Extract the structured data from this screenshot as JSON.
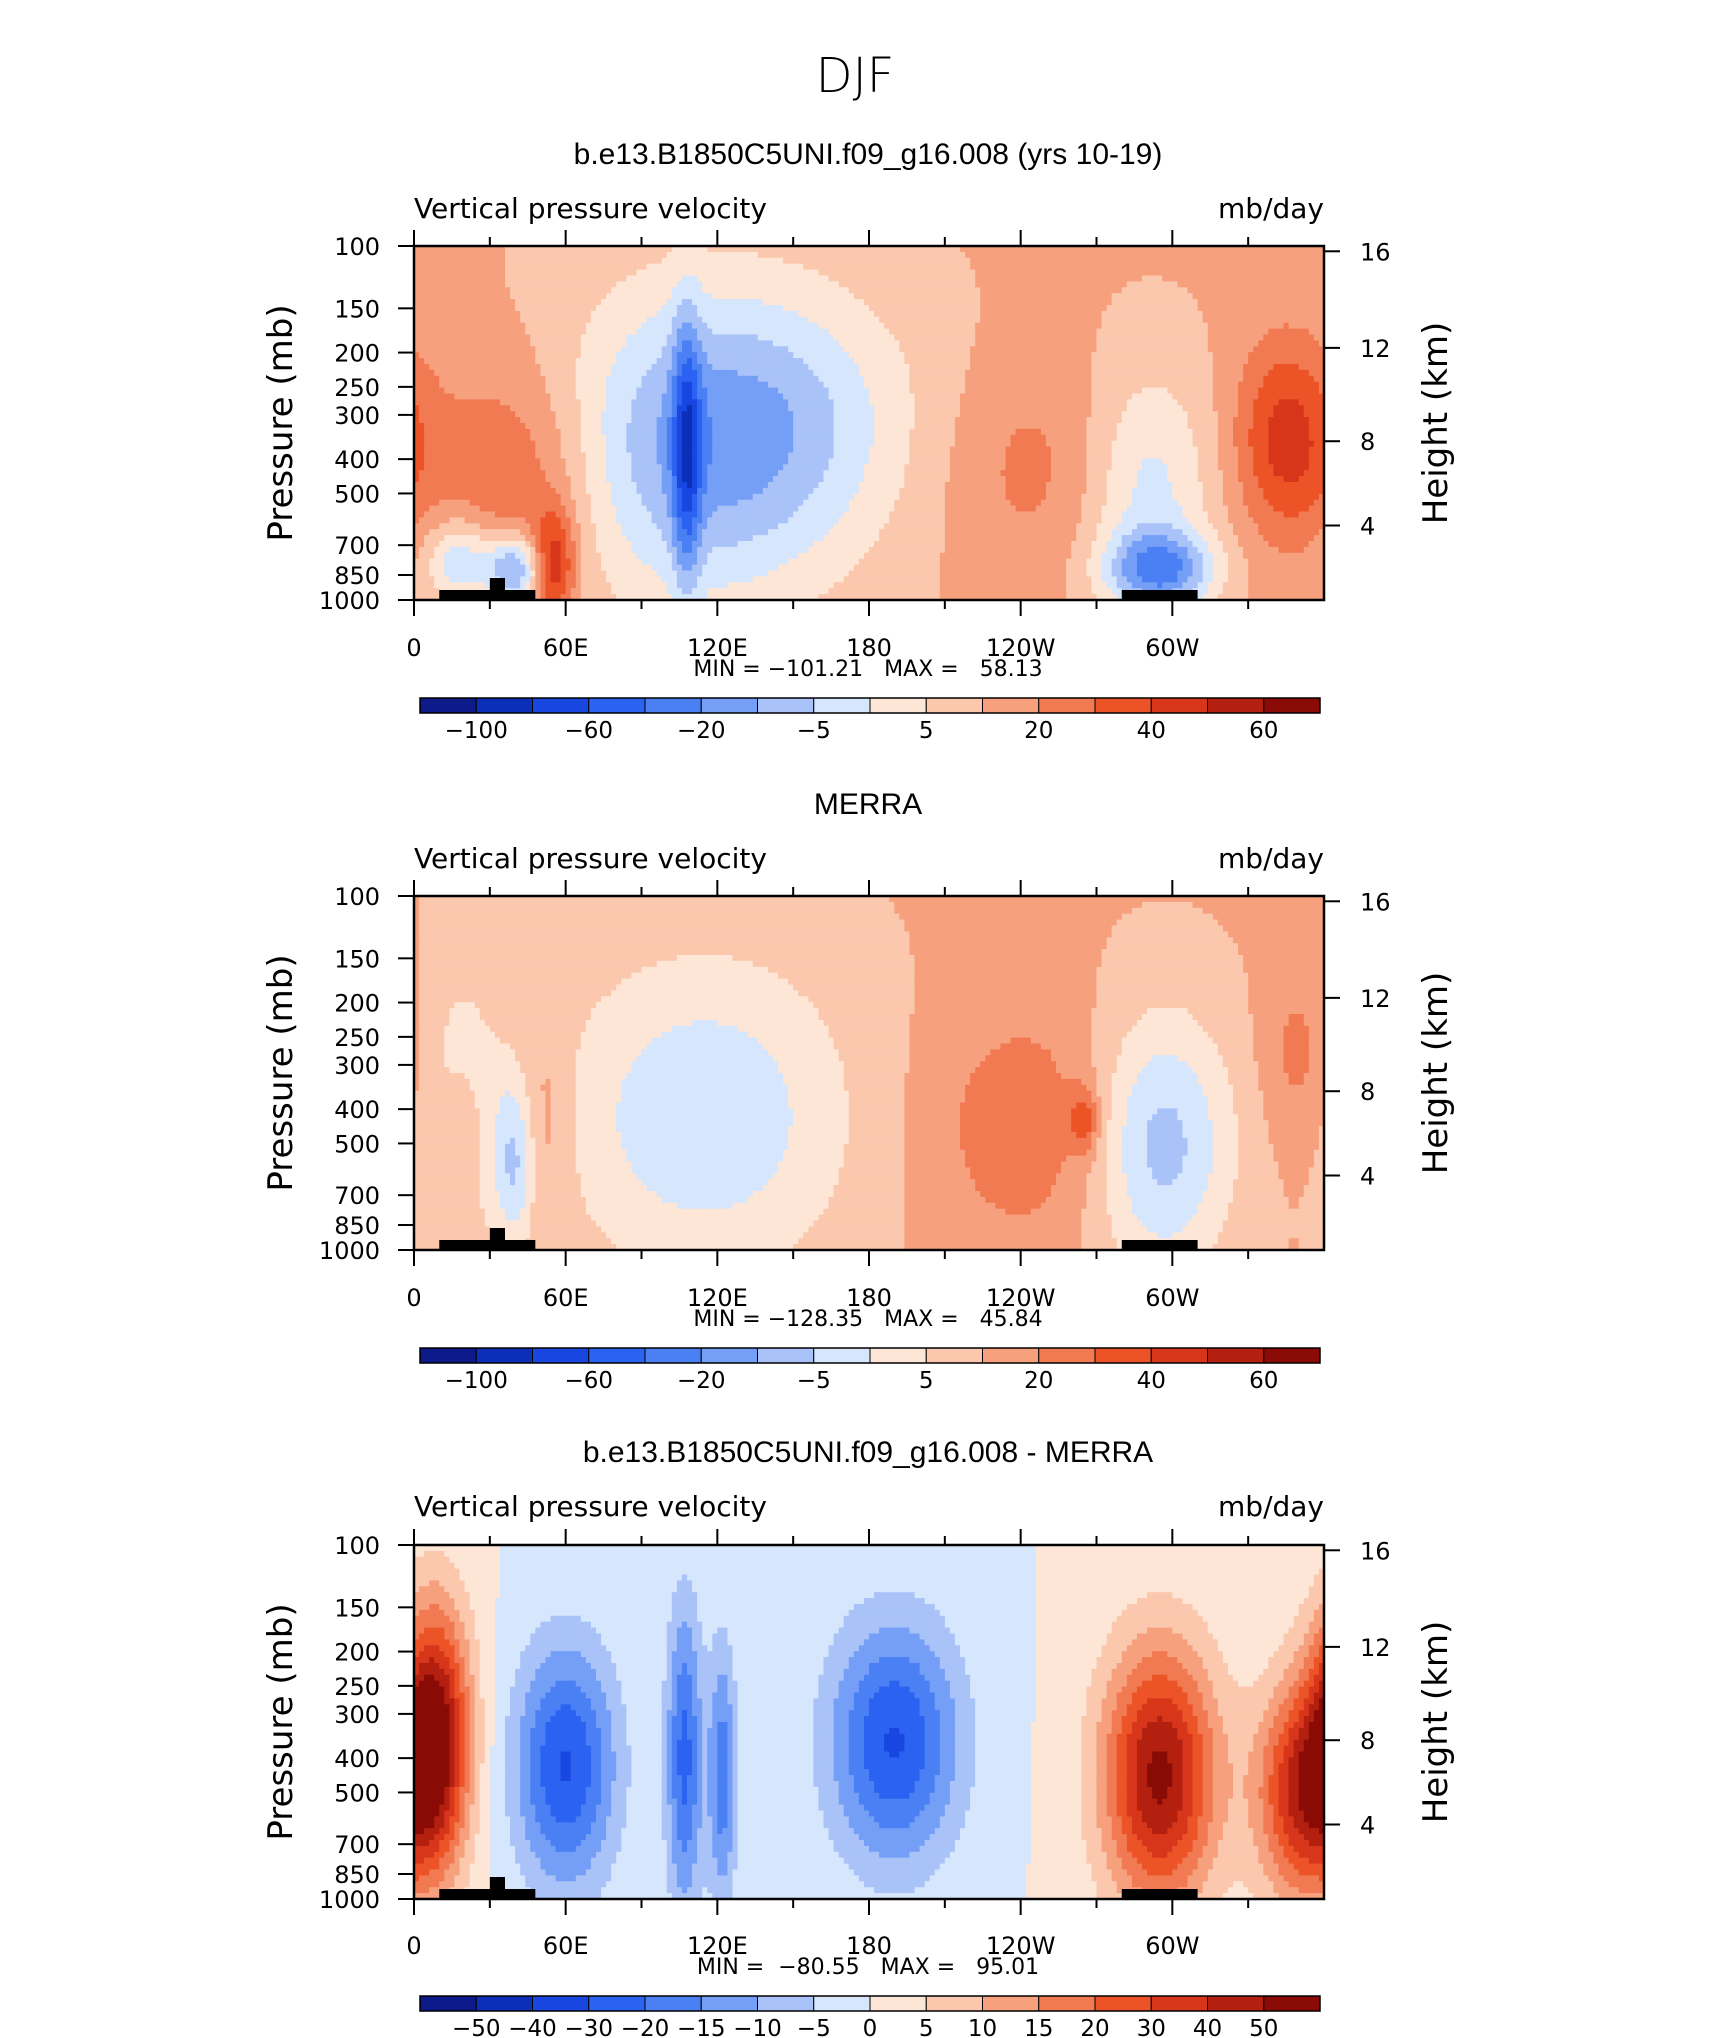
{
  "figure_title": "DJF",
  "chart_data": [
    {
      "type": "heatmap",
      "title": "b.e13.B1850C5UNI.f09_g16.008 (yrs 10-19)",
      "left_string": "Vertical pressure velocity",
      "right_string": "mb/day",
      "ylabel": "Pressure (mb)",
      "ylabel_right": "Height (km)",
      "x_ticks": [
        "0",
        "60E",
        "120E",
        "180",
        "120W",
        "60W"
      ],
      "y_ticks": [
        "100",
        "150",
        "200",
        "250",
        "300",
        "400",
        "500",
        "700",
        "850",
        "1000"
      ],
      "y_ticks_right": [
        "16",
        "12",
        "8",
        "4"
      ],
      "xlim": [
        0,
        360
      ],
      "ylim": [
        1000,
        100
      ],
      "y_scale": "log",
      "min_max_text": "MIN = −101.21   MAX =   58.13",
      "min": -101.21,
      "max": 58.13,
      "colorbar_labels": [
        "−100",
        "−60",
        "−20",
        "−5",
        "5",
        "20",
        "40",
        "60"
      ],
      "colors": [
        "#0c1a8a",
        "#0b2fb8",
        "#1846e0",
        "#2b62f2",
        "#4a80f4",
        "#759ff6",
        "#a9c3f9",
        "#d6e6fc",
        "#fde6d6",
        "#fbc8ae",
        "#f7a07e",
        "#f27a52",
        "#ec5428",
        "#d8361a",
        "#b32010",
        "#8a0b06"
      ],
      "features": [
        {
          "lon": 40,
          "p": 450,
          "v": 28,
          "wl": 24,
          "wp": 0.55
        },
        {
          "lon": 18,
          "p": 780,
          "v": -40,
          "wl": 10,
          "wp": 0.2
        },
        {
          "lon": 40,
          "p": 820,
          "v": -55,
          "wl": 8,
          "wp": 0.16
        },
        {
          "lon": 55,
          "p": 800,
          "v": 45,
          "wl": 6,
          "wp": 0.25
        },
        {
          "lon": 112,
          "p": 380,
          "v": -45,
          "wl": 42,
          "wp": 0.75
        },
        {
          "lon": 108,
          "p": 380,
          "v": -50,
          "wl": 4,
          "wp": 0.6
        },
        {
          "lon": 150,
          "p": 300,
          "v": -20,
          "wl": 40,
          "wp": 0.6
        },
        {
          "lon": 245,
          "p": 420,
          "v": 15,
          "wl": 26,
          "wp": 0.5
        },
        {
          "lon": 290,
          "p": 480,
          "v": -30,
          "wl": 18,
          "wp": 0.55
        },
        {
          "lon": 295,
          "p": 820,
          "v": -55,
          "wl": 15,
          "wp": 0.18
        },
        {
          "lon": 345,
          "p": 350,
          "v": 40,
          "wl": 14,
          "wp": 0.45
        }
      ]
    },
    {
      "type": "heatmap",
      "title": "MERRA",
      "left_string": "Vertical pressure velocity",
      "right_string": "mb/day",
      "ylabel": "Pressure (mb)",
      "ylabel_right": "Height (km)",
      "x_ticks": [
        "0",
        "60E",
        "120E",
        "180",
        "120W",
        "60W"
      ],
      "y_ticks": [
        "100",
        "150",
        "200",
        "250",
        "300",
        "400",
        "500",
        "700",
        "850",
        "1000"
      ],
      "y_ticks_right": [
        "16",
        "12",
        "8",
        "4"
      ],
      "xlim": [
        0,
        360
      ],
      "ylim": [
        1000,
        100
      ],
      "y_scale": "log",
      "min_max_text": "MIN = −128.35   MAX =   45.84",
      "min": -128.35,
      "max": 45.84,
      "colorbar_labels": [
        "−100",
        "−60",
        "−20",
        "−5",
        "5",
        "20",
        "40",
        "60"
      ],
      "colors": [
        "#0c1a8a",
        "#0b2fb8",
        "#1846e0",
        "#2b62f2",
        "#4a80f4",
        "#759ff6",
        "#a9c3f9",
        "#d6e6fc",
        "#fde6d6",
        "#fbc8ae",
        "#f7a07e",
        "#f27a52",
        "#ec5428",
        "#d8361a",
        "#b32010",
        "#8a0b06"
      ],
      "features": [
        {
          "lon": 18,
          "p": 400,
          "v": -20,
          "wl": 12,
          "wp": 0.7
        },
        {
          "lon": 18,
          "p": 480,
          "v": 20,
          "wl": 6,
          "wp": 0.3
        },
        {
          "lon": 40,
          "p": 560,
          "v": -35,
          "wl": 6,
          "wp": 0.4
        },
        {
          "lon": 50,
          "p": 450,
          "v": 15,
          "wl": 8,
          "wp": 0.5
        },
        {
          "lon": 115,
          "p": 420,
          "v": -35,
          "wl": 42,
          "wp": 0.75
        },
        {
          "lon": 245,
          "p": 450,
          "v": 20,
          "wl": 30,
          "wp": 0.55
        },
        {
          "lon": 265,
          "p": 430,
          "v": 30,
          "wl": 4,
          "wp": 0.15
        },
        {
          "lon": 295,
          "p": 500,
          "v": -45,
          "wl": 20,
          "wp": 0.6
        },
        {
          "lon": 350,
          "p": 280,
          "v": 15,
          "wl": 10,
          "wp": 0.4
        }
      ]
    },
    {
      "type": "heatmap",
      "title": "b.e13.B1850C5UNI.f09_g16.008 - MERRA",
      "left_string": "Vertical pressure velocity",
      "right_string": "mb/day",
      "ylabel": "Pressure (mb)",
      "ylabel_right": "Height (km)",
      "x_ticks": [
        "0",
        "60E",
        "120E",
        "180",
        "120W",
        "60W"
      ],
      "y_ticks": [
        "100",
        "150",
        "200",
        "250",
        "300",
        "400",
        "500",
        "700",
        "850",
        "1000"
      ],
      "y_ticks_right": [
        "16",
        "12",
        "8",
        "4"
      ],
      "xlim": [
        0,
        360
      ],
      "ylim": [
        1000,
        100
      ],
      "y_scale": "log",
      "min_max_text": "MIN =  −80.55   MAX =   95.01",
      "min": -80.55,
      "max": 95.01,
      "colorbar_labels": [
        "−50",
        "−40",
        "−30",
        "−20",
        "−15",
        "−10",
        "−5",
        "0",
        "5",
        "10",
        "15",
        "20",
        "30",
        "40",
        "50"
      ],
      "colors": [
        "#0c1a8a",
        "#0b2fb8",
        "#1846e0",
        "#2b62f2",
        "#4a80f4",
        "#759ff6",
        "#a9c3f9",
        "#d6e6fc",
        "#fde6d6",
        "#fbc8ae",
        "#f7a07e",
        "#f27a52",
        "#ec5428",
        "#d8361a",
        "#b32010",
        "#8a0b06"
      ],
      "features": [
        {
          "lon": 8,
          "p": 350,
          "v": 55,
          "wl": 10,
          "wp": 0.6
        },
        {
          "lon": 60,
          "p": 420,
          "v": -35,
          "wl": 14,
          "wp": 0.55
        },
        {
          "lon": 107,
          "p": 400,
          "v": -30,
          "wl": 5,
          "wp": 0.7
        },
        {
          "lon": 122,
          "p": 450,
          "v": -25,
          "wl": 4,
          "wp": 0.6
        },
        {
          "lon": 190,
          "p": 360,
          "v": -35,
          "wl": 18,
          "wp": 0.55
        },
        {
          "lon": 295,
          "p": 450,
          "v": 50,
          "wl": 16,
          "wp": 0.6
        },
        {
          "lon": 350,
          "p": 500,
          "v": 40,
          "wl": 12,
          "wp": 0.5
        }
      ]
    }
  ]
}
